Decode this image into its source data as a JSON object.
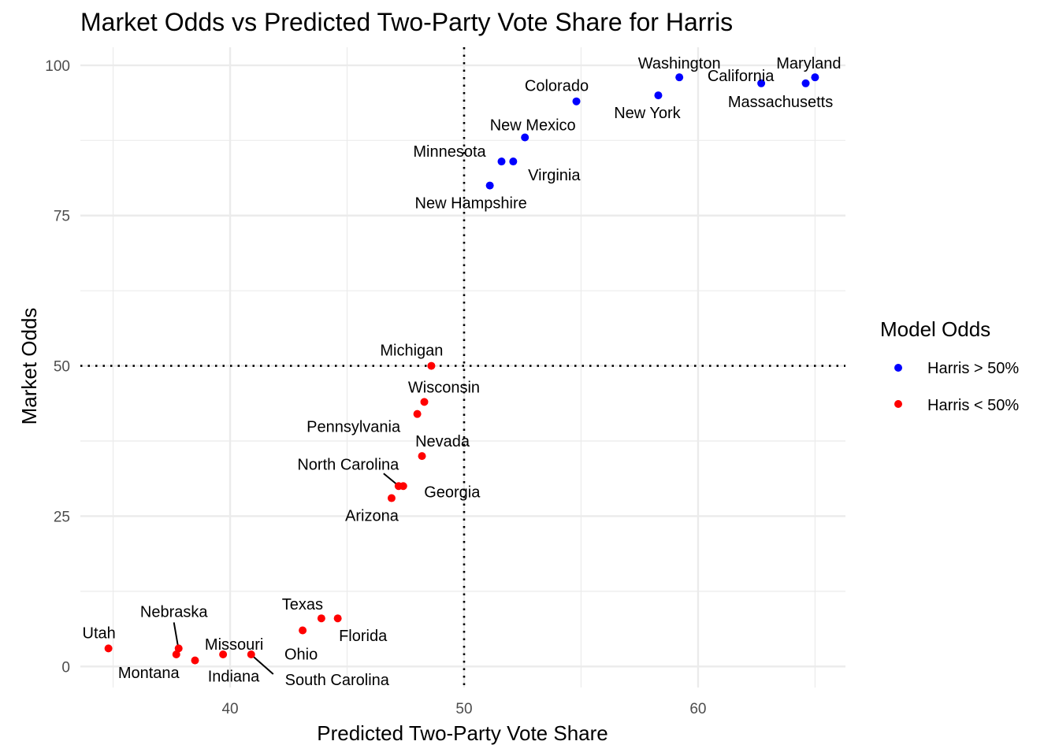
{
  "chart_data": {
    "type": "scatter",
    "title": "Market Odds vs Predicted Two-Party Vote Share for Harris",
    "xlabel": "Predicted Two-Party Vote Share",
    "ylabel": "Market Odds",
    "xlim": [
      33.6,
      66.3
    ],
    "ylim": [
      -3.5,
      103
    ],
    "x_ticks": [
      40,
      50,
      60
    ],
    "y_ticks": [
      0,
      25,
      50,
      75,
      100
    ],
    "x_minor": [
      35,
      45,
      55,
      65
    ],
    "y_minor": [
      12.5,
      37.5,
      62.5,
      87.5
    ],
    "reference_lines": {
      "x": 50,
      "y": 50,
      "style": "dotted"
    },
    "grid": true,
    "legend": {
      "title": "Model Odds",
      "placement": "right",
      "items": [
        {
          "label": "Harris > 50%",
          "color": "#0000ff"
        },
        {
          "label": "Harris < 50%",
          "color": "#ff0000"
        }
      ]
    },
    "series": [
      {
        "name": "Harris > 50%",
        "color": "#0000ff",
        "points": [
          {
            "label": "Washington",
            "x": 59.2,
            "y": 98
          },
          {
            "label": "Maryland",
            "x": 65.0,
            "y": 98
          },
          {
            "label": "California",
            "x": 62.7,
            "y": 97
          },
          {
            "label": "Massachusetts",
            "x": 64.6,
            "y": 97
          },
          {
            "label": "New York",
            "x": 58.3,
            "y": 95
          },
          {
            "label": "Colorado",
            "x": 54.8,
            "y": 94
          },
          {
            "label": "New Mexico",
            "x": 52.6,
            "y": 88
          },
          {
            "label": "Minnesota",
            "x": 51.6,
            "y": 84
          },
          {
            "label": "Virginia",
            "x": 52.1,
            "y": 84
          },
          {
            "label": "New Hampshire",
            "x": 51.1,
            "y": 80
          }
        ]
      },
      {
        "name": "Harris < 50%",
        "color": "#ff0000",
        "points": [
          {
            "label": "Michigan",
            "x": 48.6,
            "y": 50
          },
          {
            "label": "Wisconsin",
            "x": 48.3,
            "y": 44
          },
          {
            "label": "Pennsylvania",
            "x": 48.0,
            "y": 42
          },
          {
            "label": "Nevada",
            "x": 48.2,
            "y": 35
          },
          {
            "label": "North Carolina",
            "x": 47.2,
            "y": 30
          },
          {
            "label": "Georgia",
            "x": 47.4,
            "y": 30
          },
          {
            "label": "Arizona",
            "x": 46.9,
            "y": 28
          },
          {
            "label": "Texas",
            "x": 43.9,
            "y": 8
          },
          {
            "label": "Florida",
            "x": 44.6,
            "y": 8
          },
          {
            "label": "Ohio",
            "x": 43.1,
            "y": 6
          },
          {
            "label": "Utah",
            "x": 34.8,
            "y": 3
          },
          {
            "label": "Nebraska",
            "x": 37.8,
            "y": 3
          },
          {
            "label": "Montana",
            "x": 37.7,
            "y": 2
          },
          {
            "label": "Missouri",
            "x": 39.7,
            "y": 2
          },
          {
            "label": "South Carolina",
            "x": 40.9,
            "y": 2
          },
          {
            "label": "Indiana",
            "x": 38.5,
            "y": 1
          }
        ]
      }
    ]
  }
}
